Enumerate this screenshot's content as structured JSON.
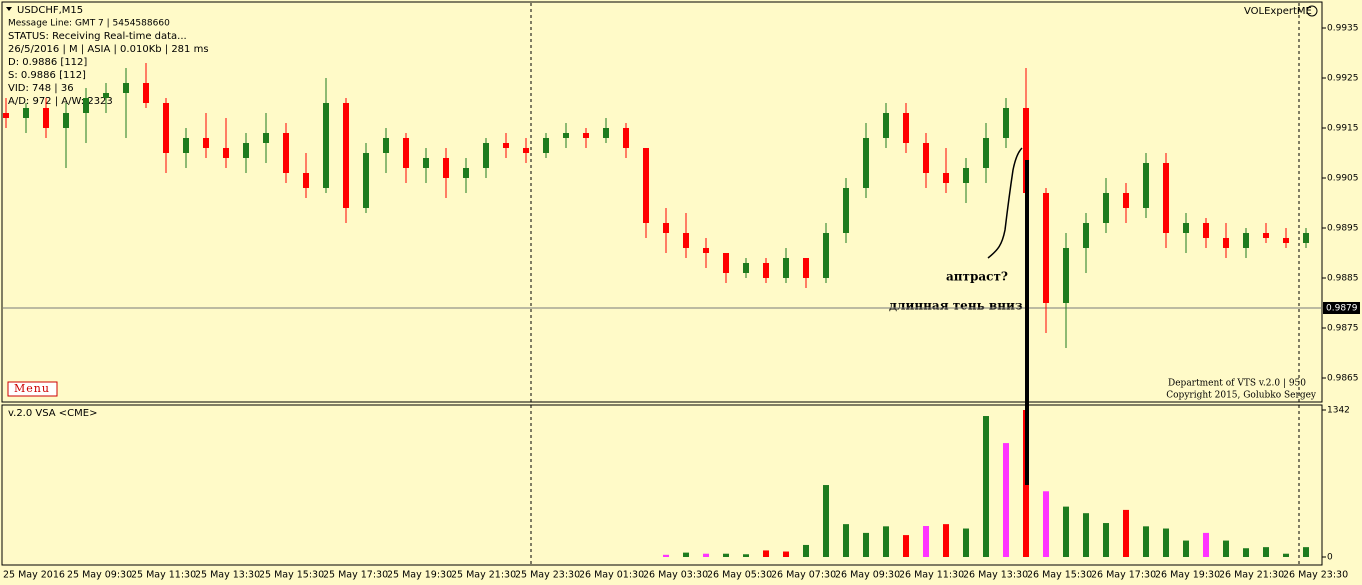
{
  "panel": {
    "symbol": "USDCHF,M15",
    "info": [
      "Message Line: GMT 7 | 5454588660",
      "STATUS:  Receiving Real-time data...",
      "26/5/2016 | M | ASIA | 0.010Kb | 281 ms",
      "D: 0.9886  [112]",
      "S: 0.9886  [112]",
      "VID: 748 | 36",
      "A/D: 972 | A/W: 2323"
    ],
    "expert": "VOLExpertME",
    "menu": "Menu",
    "credits": [
      "Department of VTS  v.2.0 | 950",
      "Copyright 2015, Golubko Sergey"
    ],
    "annotations": [
      "аптраст?",
      "длинная тень вниз"
    ]
  },
  "chart_data": [
    {
      "type": "candlestick",
      "ylim": [
        0.986,
        0.994
      ],
      "yticks": [
        0.9865,
        0.9875,
        0.9885,
        0.9895,
        0.9905,
        0.9915,
        0.9925,
        0.9935
      ],
      "current_price": 0.9879,
      "up_color": "#1e7b1e",
      "down_color": "#ff0000",
      "x_labels": [
        "25 May 2016",
        "25 May 09:30",
        "25 May 11:30",
        "25 May 13:30",
        "25 May 15:30",
        "25 May 17:30",
        "25 May 19:30",
        "25 May 21:30",
        "25 May 23:30",
        "26 May 01:30",
        "26 May 03:30",
        "26 May 05:30",
        "26 May 07:30",
        "26 May 09:30",
        "26 May 11:30",
        "26 May 13:30",
        "26 May 15:30",
        "26 May 17:30",
        "26 May 19:30",
        "26 May 21:30",
        "26 May 23:30"
      ],
      "ohlc": [
        [
          0.9918,
          0.9921,
          0.9915,
          0.9917
        ],
        [
          0.9917,
          0.992,
          0.9914,
          0.9919
        ],
        [
          0.9919,
          0.9921,
          0.9913,
          0.9915
        ],
        [
          0.9915,
          0.992,
          0.9907,
          0.9918
        ],
        [
          0.9918,
          0.9923,
          0.9912,
          0.9921
        ],
        [
          0.9921,
          0.9924,
          0.9918,
          0.9922
        ],
        [
          0.9922,
          0.9927,
          0.9913,
          0.9924
        ],
        [
          0.9924,
          0.9928,
          0.9919,
          0.992
        ],
        [
          0.992,
          0.9921,
          0.9906,
          0.991
        ],
        [
          0.991,
          0.9915,
          0.9907,
          0.9913
        ],
        [
          0.9913,
          0.9918,
          0.9909,
          0.9911
        ],
        [
          0.9911,
          0.9917,
          0.9907,
          0.9909
        ],
        [
          0.9909,
          0.9914,
          0.9906,
          0.9912
        ],
        [
          0.9912,
          0.9918,
          0.9908,
          0.9914
        ],
        [
          0.9914,
          0.9916,
          0.9904,
          0.9906
        ],
        [
          0.9906,
          0.991,
          0.9901,
          0.9903
        ],
        [
          0.9903,
          0.9925,
          0.9902,
          0.992
        ],
        [
          0.992,
          0.9921,
          0.9896,
          0.9899
        ],
        [
          0.9899,
          0.9912,
          0.9898,
          0.991
        ],
        [
          0.991,
          0.9915,
          0.9906,
          0.9913
        ],
        [
          0.9913,
          0.9914,
          0.9904,
          0.9907
        ],
        [
          0.9907,
          0.9911,
          0.9904,
          0.9909
        ],
        [
          0.9909,
          0.9911,
          0.9901,
          0.9905
        ],
        [
          0.9905,
          0.9909,
          0.9902,
          0.9907
        ],
        [
          0.9907,
          0.9913,
          0.9905,
          0.9912
        ],
        [
          0.9912,
          0.9914,
          0.9909,
          0.9911
        ],
        [
          0.9911,
          0.9913,
          0.9908,
          0.991
        ],
        [
          0.991,
          0.9914,
          0.9909,
          0.9913
        ],
        [
          0.9913,
          0.9916,
          0.9911,
          0.9914
        ],
        [
          0.9914,
          0.9915,
          0.9911,
          0.9913
        ],
        [
          0.9913,
          0.9917,
          0.9912,
          0.9915
        ],
        [
          0.9915,
          0.9916,
          0.9909,
          0.9911
        ],
        [
          0.9911,
          0.9911,
          0.9893,
          0.9896
        ],
        [
          0.9896,
          0.9899,
          0.989,
          0.9894
        ],
        [
          0.9894,
          0.9898,
          0.9889,
          0.9891
        ],
        [
          0.9891,
          0.9893,
          0.9887,
          0.989
        ],
        [
          0.989,
          0.989,
          0.9884,
          0.9886
        ],
        [
          0.9886,
          0.9889,
          0.9885,
          0.9888
        ],
        [
          0.9888,
          0.9889,
          0.9884,
          0.9885
        ],
        [
          0.9885,
          0.9891,
          0.9884,
          0.9889
        ],
        [
          0.9889,
          0.9889,
          0.9883,
          0.9885
        ],
        [
          0.9885,
          0.9896,
          0.9884,
          0.9894
        ],
        [
          0.9894,
          0.9905,
          0.9892,
          0.9903
        ],
        [
          0.9903,
          0.9916,
          0.9901,
          0.9913
        ],
        [
          0.9913,
          0.992,
          0.9911,
          0.9918
        ],
        [
          0.9918,
          0.992,
          0.991,
          0.9912
        ],
        [
          0.9912,
          0.9914,
          0.9903,
          0.9906
        ],
        [
          0.9906,
          0.9911,
          0.9902,
          0.9904
        ],
        [
          0.9904,
          0.9909,
          0.99,
          0.9907
        ],
        [
          0.9907,
          0.9916,
          0.9904,
          0.9913
        ],
        [
          0.9913,
          0.9921,
          0.9911,
          0.9919
        ],
        [
          0.9919,
          0.9927,
          0.99,
          0.9902
        ],
        [
          0.9902,
          0.9903,
          0.9874,
          0.988
        ],
        [
          0.988,
          0.9894,
          0.9871,
          0.9891
        ],
        [
          0.9891,
          0.9898,
          0.9886,
          0.9896
        ],
        [
          0.9896,
          0.9905,
          0.9894,
          0.9902
        ],
        [
          0.9902,
          0.9904,
          0.9896,
          0.9899
        ],
        [
          0.9899,
          0.991,
          0.9897,
          0.9908
        ],
        [
          0.9908,
          0.991,
          0.9891,
          0.9894
        ],
        [
          0.9894,
          0.9898,
          0.989,
          0.9896
        ],
        [
          0.9896,
          0.9897,
          0.9891,
          0.9893
        ],
        [
          0.9893,
          0.9896,
          0.9889,
          0.9891
        ],
        [
          0.9891,
          0.9895,
          0.9889,
          0.9894
        ],
        [
          0.9894,
          0.9896,
          0.9892,
          0.9893
        ],
        [
          0.9893,
          0.9895,
          0.9891,
          0.9892
        ],
        [
          0.9892,
          0.9895,
          0.9891,
          0.9894
        ]
      ]
    },
    {
      "type": "bar",
      "title": "v.2.0 VSA <CME>",
      "ylim": [
        0,
        1342
      ],
      "yticks": [
        0,
        1342
      ],
      "values": [
        0,
        0,
        0,
        0,
        0,
        0,
        0,
        0,
        0,
        0,
        0,
        0,
        0,
        0,
        0,
        0,
        0,
        0,
        0,
        0,
        0,
        0,
        0,
        0,
        0,
        0,
        0,
        0,
        0,
        0,
        0,
        0,
        0,
        20,
        40,
        30,
        30,
        25,
        60,
        50,
        110,
        657,
        300,
        220,
        280,
        200,
        283,
        300,
        260,
        1287,
        1040,
        1342,
        600,
        460,
        400,
        310,
        430,
        280,
        260,
        150,
        220,
        150,
        80,
        90,
        30,
        90
      ],
      "colors": [
        "#1e7b1e",
        "#1e7b1e",
        "#1e7b1e",
        "#1e7b1e",
        "#1e7b1e",
        "#1e7b1e",
        "#1e7b1e",
        "#1e7b1e",
        "#1e7b1e",
        "#1e7b1e",
        "#1e7b1e",
        "#1e7b1e",
        "#1e7b1e",
        "#1e7b1e",
        "#1e7b1e",
        "#1e7b1e",
        "#1e7b1e",
        "#1e7b1e",
        "#1e7b1e",
        "#1e7b1e",
        "#1e7b1e",
        "#1e7b1e",
        "#1e7b1e",
        "#1e7b1e",
        "#1e7b1e",
        "#1e7b1e",
        "#1e7b1e",
        "#1e7b1e",
        "#1e7b1e",
        "#1e7b1e",
        "#1e7b1e",
        "#1e7b1e",
        "#1e7b1e",
        "#ff33ff",
        "#1e7b1e",
        "#ff33ff",
        "#1e7b1e",
        "#1e7b1e",
        "#ff0000",
        "#ff0000",
        "#1e7b1e",
        "#1e7b1e",
        "#1e7b1e",
        "#1e7b1e",
        "#1e7b1e",
        "#ff0000",
        "#ff33ff",
        "#ff0000",
        "#1e7b1e",
        "#1e7b1e",
        "#ff33ff",
        "#ff0000",
        "#ff33ff",
        "#1e7b1e",
        "#1e7b1e",
        "#1e7b1e",
        "#ff0000",
        "#1e7b1e",
        "#1e7b1e",
        "#1e7b1e",
        "#ff33ff",
        "#1e7b1e",
        "#1e7b1e",
        "#1e7b1e",
        "#1e7b1e",
        "#1e7b1e"
      ]
    }
  ]
}
